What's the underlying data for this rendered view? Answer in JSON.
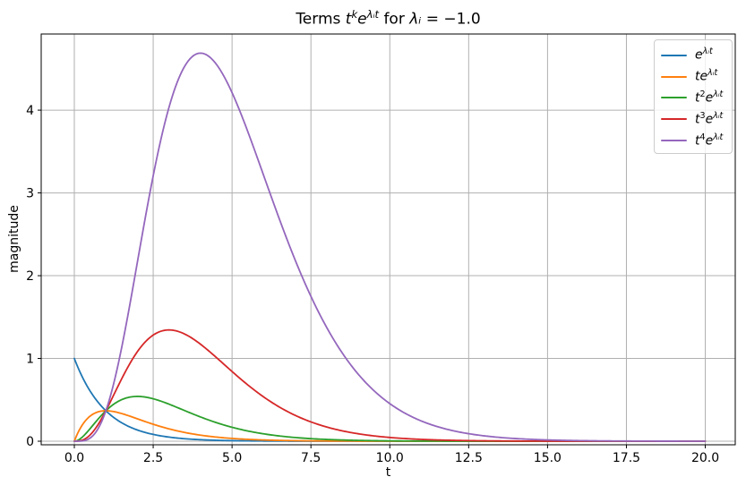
{
  "figure": {
    "background": "#ffffff",
    "kind": "matplotlib-figure"
  },
  "chart_data": {
    "type": "line",
    "title": "Terms t^k e^(λᵢt) for λᵢ = −1.0",
    "title_segments": [
      {
        "t": "Terms "
      },
      {
        "t": "t",
        "i": true
      },
      {
        "s": "k",
        "i": true
      },
      {
        "t": "e",
        "i": true
      },
      {
        "s": "λᵢt",
        "i": true
      },
      {
        "t": " for "
      },
      {
        "t": "λᵢ",
        "i": true
      },
      {
        "t": " = −1.0"
      }
    ],
    "xlabel": "t",
    "ylabel": "magnitude",
    "xlim": [
      -1.05,
      20.95
    ],
    "ylim": [
      -0.043,
      4.92
    ],
    "xticks": {
      "values": [
        0,
        2.5,
        5,
        7.5,
        10,
        12.5,
        15,
        17.5,
        20
      ],
      "labels": [
        "0.0",
        "2.5",
        "5.0",
        "7.5",
        "10.0",
        "12.5",
        "15.0",
        "17.5",
        "20.0"
      ]
    },
    "yticks": {
      "values": [
        0,
        1,
        2,
        3,
        4
      ],
      "labels": [
        "0",
        "1",
        "2",
        "3",
        "4"
      ]
    },
    "grid": true,
    "grid_color": "#b0b0b0",
    "axis_color": "#000000",
    "legend": {
      "position": "upper right",
      "border_color": "#cccccc",
      "background": "rgba(255,255,255,0.8)"
    },
    "generator": {
      "formula": "y = t^k * exp(lambda * t)",
      "lambda": -1.0,
      "t_min": 0,
      "t_max": 20,
      "t_step": 0.05
    },
    "sample_t": [
      0,
      1,
      2,
      3,
      4,
      5,
      6,
      7,
      8,
      9,
      10,
      11,
      12,
      13,
      14,
      15,
      16,
      17,
      18,
      19,
      20
    ],
    "series": [
      {
        "name": "e^(λᵢt)",
        "k": 0,
        "color": "#1f77b4",
        "label_segments": [
          {
            "t": "e",
            "i": true
          },
          {
            "s": "λᵢt",
            "i": true
          }
        ],
        "values": [
          1,
          0.368,
          0.135,
          0.05,
          0.018,
          0.007,
          0.002,
          0.001,
          0,
          0,
          0,
          0,
          0,
          0,
          0,
          0,
          0,
          0,
          0,
          0,
          0
        ]
      },
      {
        "name": "t e^(λᵢt)",
        "k": 1,
        "color": "#ff7f0e",
        "label_segments": [
          {
            "t": "te",
            "i": true
          },
          {
            "s": "λᵢt",
            "i": true
          }
        ],
        "values": [
          0,
          0.368,
          0.271,
          0.149,
          0.073,
          0.034,
          0.015,
          0.006,
          0.003,
          0.001,
          0,
          0,
          0,
          0,
          0,
          0,
          0,
          0,
          0,
          0,
          0
        ]
      },
      {
        "name": "t^2 e^(λᵢt)",
        "k": 2,
        "color": "#2ca02c",
        "label_segments": [
          {
            "t": "t",
            "i": true
          },
          {
            "s": "2"
          },
          {
            "t": "e",
            "i": true
          },
          {
            "s": "λᵢt",
            "i": true
          }
        ],
        "values": [
          0,
          0.368,
          0.541,
          0.448,
          0.293,
          0.168,
          0.089,
          0.045,
          0.021,
          0.01,
          0.005,
          0.002,
          0.001,
          0,
          0,
          0,
          0,
          0,
          0,
          0,
          0
        ]
      },
      {
        "name": "t^3 e^(λᵢt)",
        "k": 3,
        "color": "#d62728",
        "label_segments": [
          {
            "t": "t",
            "i": true
          },
          {
            "s": "3"
          },
          {
            "t": "e",
            "i": true
          },
          {
            "s": "λᵢt",
            "i": true
          }
        ],
        "values": [
          0,
          0.368,
          1.083,
          1.344,
          1.171,
          0.842,
          0.536,
          0.313,
          0.172,
          0.09,
          0.045,
          0.022,
          0.011,
          0.005,
          0.002,
          0.001,
          0,
          0,
          0,
          0,
          0
        ]
      },
      {
        "name": "t^4 e^(λᵢt)",
        "k": 4,
        "color": "#9467bd",
        "label_segments": [
          {
            "t": "t",
            "i": true
          },
          {
            "s": "4"
          },
          {
            "t": "e",
            "i": true
          },
          {
            "s": "λᵢt",
            "i": true
          }
        ],
        "values": [
          0,
          0.368,
          2.165,
          4.033,
          4.689,
          4.211,
          3.214,
          2.191,
          1.374,
          0.81,
          0.454,
          0.245,
          0.127,
          0.065,
          0.032,
          0.016,
          0.007,
          0.003,
          0.002,
          0.001,
          0
        ]
      }
    ]
  }
}
